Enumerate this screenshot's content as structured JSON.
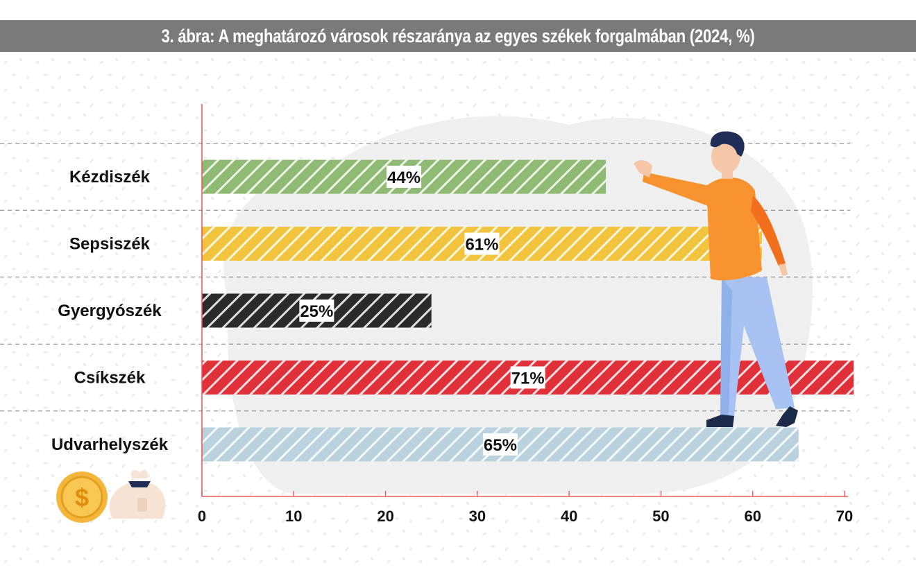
{
  "title": "3. ábra: A meghatározó városok részaránya az egyes székek forgalmában (2024, %)",
  "chart_data": {
    "type": "bar",
    "orientation": "horizontal",
    "title": "3. ábra: A meghatározó városok részaránya az egyes székek forgalmában (2024, %)",
    "xlabel": "",
    "ylabel": "",
    "categories": [
      "Kézdiszék",
      "Sepsiszék",
      "Gyergyószék",
      "Csíkszék",
      "Udvarhelyszék"
    ],
    "values": [
      44,
      61,
      25,
      71,
      65
    ],
    "value_labels": [
      "44%",
      "61%",
      "25%",
      "71%",
      "65%"
    ],
    "colors": [
      "#8fba74",
      "#f2c33c",
      "#2b2b2b",
      "#e0313a",
      "#b9d2dd"
    ],
    "xlim": [
      0,
      70
    ],
    "xticks": [
      "0",
      "10",
      "20",
      "30",
      "40",
      "50",
      "60",
      "70"
    ],
    "grid": "horizontal dashed",
    "legend": "none"
  },
  "decorations": {
    "person": "person-pointing-illustration",
    "coin": "dollar-coin-icon",
    "money_bag": "money-bag-icon"
  }
}
